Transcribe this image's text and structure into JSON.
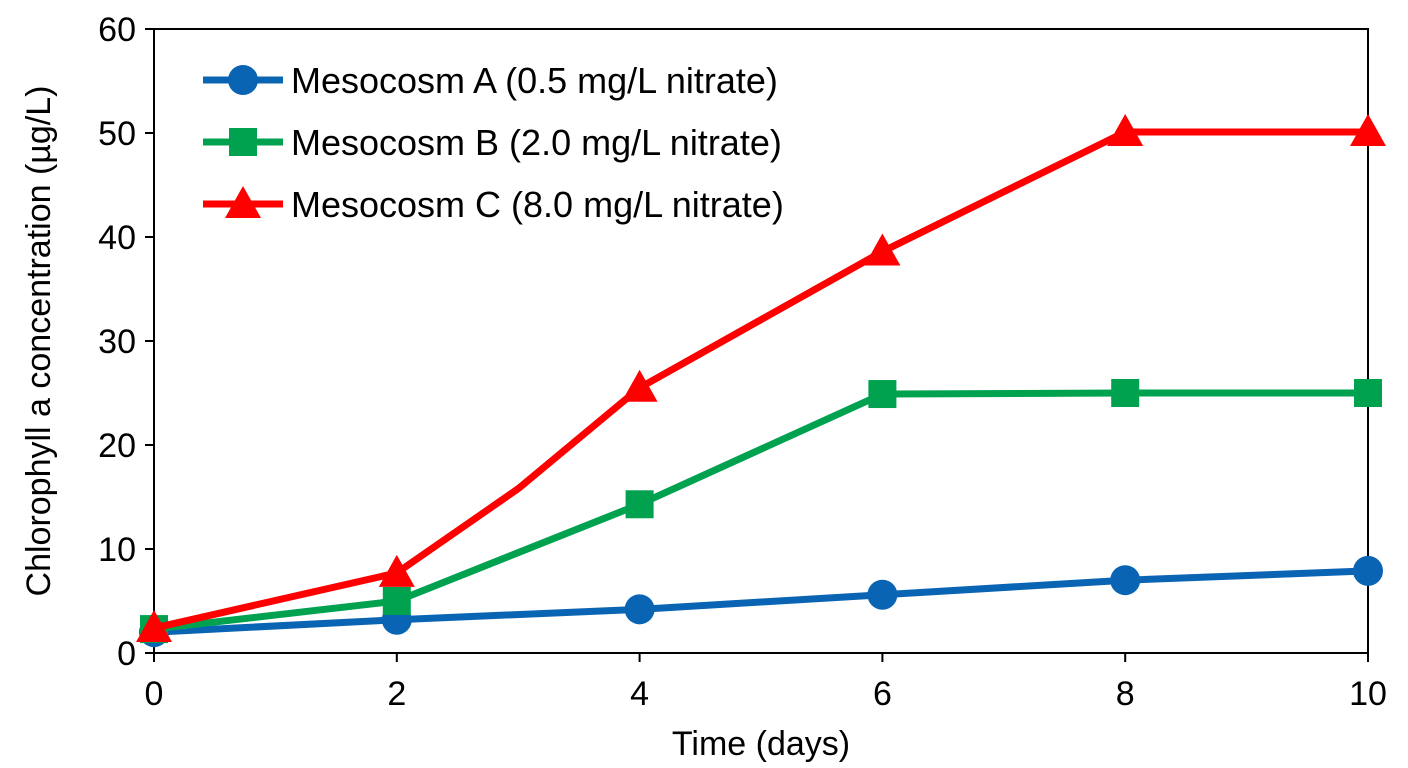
{
  "chart_data": {
    "type": "line",
    "title": "",
    "xlabel": "Time (days)",
    "ylabel": "Chlorophyll a concentration (µg/L)",
    "xlim": [
      0,
      10
    ],
    "ylim": [
      0,
      60
    ],
    "xticks": [
      0,
      2,
      4,
      6,
      8,
      10
    ],
    "yticks": [
      0,
      10,
      20,
      30,
      40,
      50,
      60
    ],
    "grid": false,
    "legend_position": "top-left",
    "series": [
      {
        "name": "Mesocosm A (0.5 mg/L nitrate)",
        "color": "#0a64b4",
        "marker": "circle",
        "x": [
          0,
          2,
          4,
          6,
          8,
          10
        ],
        "values": [
          2.0,
          3.2,
          4.2,
          5.6,
          7.0,
          7.9
        ]
      },
      {
        "name": "Mesocosm B (2.0 mg/L nitrate)",
        "color": "#00a24f",
        "marker": "square",
        "x": [
          0,
          2,
          4,
          6,
          8,
          10
        ],
        "values": [
          2.3,
          5.0,
          14.3,
          24.9,
          25.0,
          25.0
        ]
      },
      {
        "name": "Mesocosm C (8.0 mg/L nitrate)",
        "color": "#ff0000",
        "marker": "triangle",
        "x": [
          0,
          2,
          3,
          4,
          6,
          8,
          10
        ],
        "values": [
          2.4,
          7.7,
          15.8,
          25.5,
          38.6,
          50.1,
          50.1
        ]
      }
    ]
  }
}
